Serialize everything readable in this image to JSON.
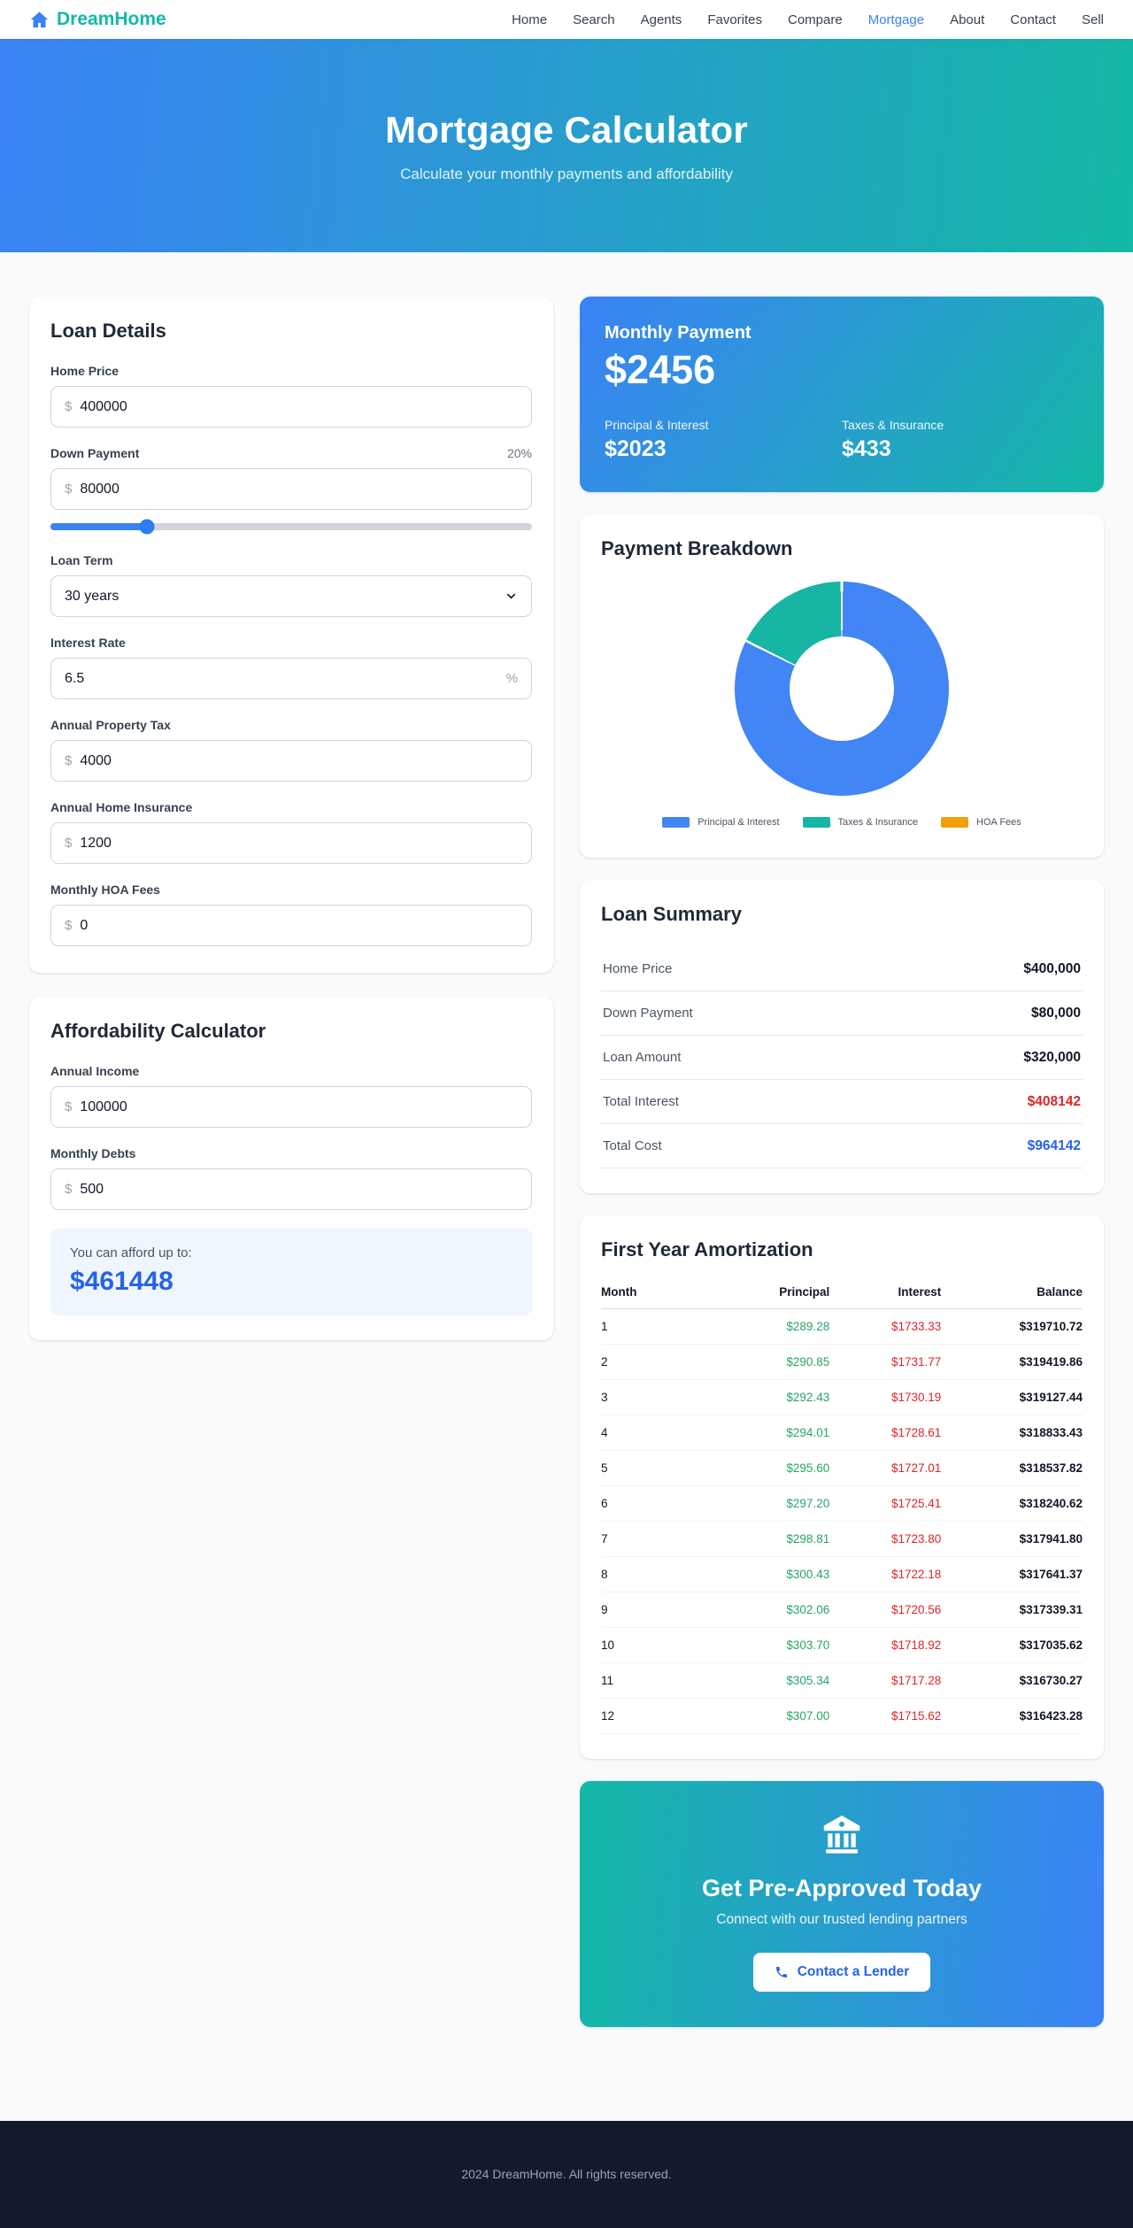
{
  "header": {
    "brand": "DreamHome",
    "nav": [
      {
        "label": "Home",
        "active": false
      },
      {
        "label": "Search",
        "active": false
      },
      {
        "label": "Agents",
        "active": false
      },
      {
        "label": "Favorites",
        "active": false
      },
      {
        "label": "Compare",
        "active": false
      },
      {
        "label": "Mortgage",
        "active": true
      },
      {
        "label": "About",
        "active": false
      },
      {
        "label": "Contact",
        "active": false
      },
      {
        "label": "Sell",
        "active": false
      }
    ]
  },
  "hero": {
    "title": "Mortgage Calculator",
    "subtitle": "Calculate your monthly payments and affordability"
  },
  "loan_details": {
    "title": "Loan Details",
    "home_price": {
      "label": "Home Price",
      "prefix": "$",
      "value": "400000"
    },
    "down_payment": {
      "label": "Down Payment",
      "percent_label": "20%",
      "prefix": "$",
      "value": "80000",
      "slider_percent": 20
    },
    "loan_term": {
      "label": "Loan Term",
      "value": "30 years"
    },
    "interest_rate": {
      "label": "Interest Rate",
      "value": "6.5",
      "suffix": "%"
    },
    "property_tax": {
      "label": "Annual Property Tax",
      "prefix": "$",
      "value": "4000"
    },
    "home_insurance": {
      "label": "Annual Home Insurance",
      "prefix": "$",
      "value": "1200"
    },
    "hoa_fees": {
      "label": "Monthly HOA Fees",
      "prefix": "$",
      "value": "0"
    }
  },
  "affordability": {
    "title": "Affordability Calculator",
    "annual_income": {
      "label": "Annual Income",
      "prefix": "$",
      "value": "100000"
    },
    "monthly_debts": {
      "label": "Monthly Debts",
      "prefix": "$",
      "value": "500"
    },
    "result_label": "You can afford up to:",
    "result_value": "$461448",
    "result_color": "#2563eb"
  },
  "monthly_payment": {
    "title": "Monthly Payment",
    "amount": "$2456",
    "principal_interest": {
      "label": "Principal & Interest",
      "value": "$2023"
    },
    "taxes_insurance": {
      "label": "Taxes & Insurance",
      "value": "$433"
    }
  },
  "payment_breakdown": {
    "title": "Payment Breakdown",
    "chart_data": {
      "type": "pie",
      "donut": true,
      "labels": [
        "Principal & Interest",
        "Taxes & Insurance",
        "HOA Fees"
      ],
      "values": [
        2023,
        433,
        0
      ],
      "colors": [
        "#4285f4",
        "#16b5a4",
        "#f59e0b"
      ],
      "legend_position": "bottom"
    }
  },
  "loan_summary": {
    "title": "Loan Summary",
    "rows": [
      {
        "label": "Home Price",
        "value": "$400,000",
        "color": "#111827"
      },
      {
        "label": "Down Payment",
        "value": "$80,000",
        "color": "#111827"
      },
      {
        "label": "Loan Amount",
        "value": "$320,000",
        "color": "#111827"
      },
      {
        "label": "Total Interest",
        "value": "$408142",
        "color": "#dc2626"
      },
      {
        "label": "Total Cost",
        "value": "$964142",
        "color": "#2563eb"
      }
    ]
  },
  "amortization": {
    "title": "First Year Amortization",
    "headers": [
      "Month",
      "Principal",
      "Interest",
      "Balance"
    ],
    "principal_color": "#27a567",
    "interest_color": "#dc2626",
    "rows": [
      [
        "1",
        "$289.28",
        "$1733.33",
        "$319710.72"
      ],
      [
        "2",
        "$290.85",
        "$1731.77",
        "$319419.86"
      ],
      [
        "3",
        "$292.43",
        "$1730.19",
        "$319127.44"
      ],
      [
        "4",
        "$294.01",
        "$1728.61",
        "$318833.43"
      ],
      [
        "5",
        "$295.60",
        "$1727.01",
        "$318537.82"
      ],
      [
        "6",
        "$297.20",
        "$1725.41",
        "$318240.62"
      ],
      [
        "7",
        "$298.81",
        "$1723.80",
        "$317941.80"
      ],
      [
        "8",
        "$300.43",
        "$1722.18",
        "$317641.37"
      ],
      [
        "9",
        "$302.06",
        "$1720.56",
        "$317339.31"
      ],
      [
        "10",
        "$303.70",
        "$1718.92",
        "$317035.62"
      ],
      [
        "11",
        "$305.34",
        "$1717.28",
        "$316730.27"
      ],
      [
        "12",
        "$307.00",
        "$1715.62",
        "$316423.28"
      ]
    ]
  },
  "preapproved": {
    "title": "Get Pre-Approved Today",
    "subtitle": "Connect with our trusted lending partners",
    "button_label": "Contact a Lender"
  },
  "footer": {
    "copyright": "2024 DreamHome. All rights reserved."
  },
  "colors": {
    "accent_blue": "#3b82f6",
    "accent_teal": "#14b8a6"
  }
}
